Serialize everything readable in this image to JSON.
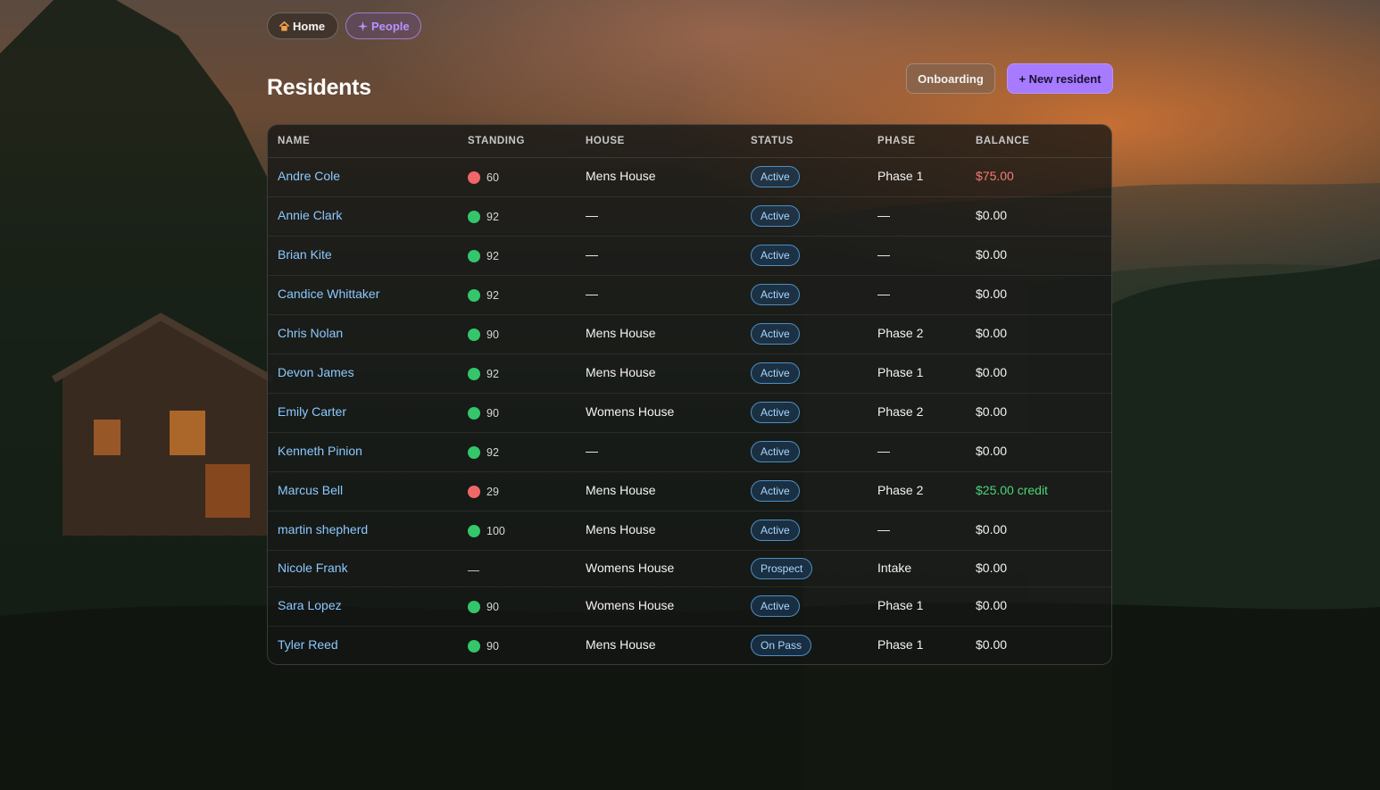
{
  "nav": {
    "home_label": "Home",
    "people_label": "People"
  },
  "page": {
    "title": "Residents"
  },
  "actions": {
    "onboarding_label": "Onboarding",
    "new_resident_label": "+ New resident"
  },
  "table": {
    "headers": {
      "name": "NAME",
      "standing": "STANDING",
      "house": "HOUSE",
      "status": "STATUS",
      "phase": "PHASE",
      "balance": "BALANCE"
    },
    "rows": [
      {
        "name": "Andre Cole",
        "standing_indicator": "red",
        "standing": "60",
        "house": "Mens House",
        "status": "Active",
        "phase": "Phase 1",
        "balance": "$75.00",
        "balance_type": "owed"
      },
      {
        "name": "Annie Clark",
        "standing_indicator": "green",
        "standing": "92",
        "house": "—",
        "status": "Active",
        "phase": "—",
        "balance": "$0.00",
        "balance_type": "zero"
      },
      {
        "name": "Brian Kite",
        "standing_indicator": "green",
        "standing": "92",
        "house": "—",
        "status": "Active",
        "phase": "—",
        "balance": "$0.00",
        "balance_type": "zero"
      },
      {
        "name": "Candice Whittaker",
        "standing_indicator": "green",
        "standing": "92",
        "house": "—",
        "status": "Active",
        "phase": "—",
        "balance": "$0.00",
        "balance_type": "zero"
      },
      {
        "name": "Chris Nolan",
        "standing_indicator": "green",
        "standing": "90",
        "house": "Mens House",
        "status": "Active",
        "phase": "Phase 2",
        "balance": "$0.00",
        "balance_type": "zero"
      },
      {
        "name": "Devon James",
        "standing_indicator": "green",
        "standing": "92",
        "house": "Mens House",
        "status": "Active",
        "phase": "Phase 1",
        "balance": "$0.00",
        "balance_type": "zero"
      },
      {
        "name": "Emily Carter",
        "standing_indicator": "green",
        "standing": "90",
        "house": "Womens House",
        "status": "Active",
        "phase": "Phase 2",
        "balance": "$0.00",
        "balance_type": "zero"
      },
      {
        "name": "Kenneth Pinion",
        "standing_indicator": "green",
        "standing": "92",
        "house": "—",
        "status": "Active",
        "phase": "—",
        "balance": "$0.00",
        "balance_type": "zero"
      },
      {
        "name": "Marcus Bell",
        "standing_indicator": "red",
        "standing": "29",
        "house": "Mens House",
        "status": "Active",
        "phase": "Phase 2",
        "balance": "$25.00 credit",
        "balance_type": "credit"
      },
      {
        "name": "martin shepherd",
        "standing_indicator": "green",
        "standing": "100",
        "house": "Mens House",
        "status": "Active",
        "phase": "—",
        "balance": "$0.00",
        "balance_type": "zero"
      },
      {
        "name": "Nicole Frank",
        "standing_indicator": "none",
        "standing": "—",
        "house": "Womens House",
        "status": "Prospect",
        "phase": "Intake",
        "balance": "$0.00",
        "balance_type": "zero"
      },
      {
        "name": "Sara Lopez",
        "standing_indicator": "green",
        "standing": "90",
        "house": "Womens House",
        "status": "Active",
        "phase": "Phase 1",
        "balance": "$0.00",
        "balance_type": "zero"
      },
      {
        "name": "Tyler Reed",
        "standing_indicator": "green",
        "standing": "90",
        "house": "Mens House",
        "status": "On Pass",
        "phase": "Phase 1",
        "balance": "$0.00",
        "balance_type": "zero"
      }
    ]
  },
  "colors": {
    "accent": "#a77bff",
    "link": "#8cc8ff",
    "standing_good": "#33c66a",
    "standing_bad": "#f06767",
    "balance_owed": "#f47a7a",
    "balance_credit": "#4cd47a"
  },
  "icons": {
    "home": "home-icon",
    "people": "people-icon"
  }
}
